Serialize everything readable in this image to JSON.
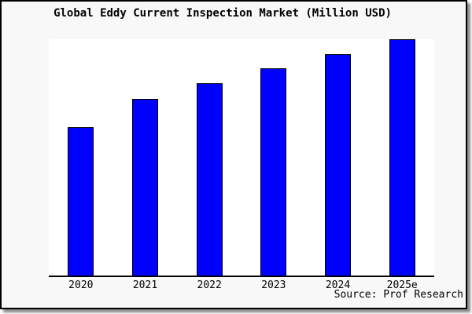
{
  "title": "Global Eddy Current Inspection Market (Million USD)",
  "source": "Source: Prof Research",
  "colors": {
    "bar_fill": "#0000ff",
    "bar_border": "#000000",
    "plot_background": "#ffffff",
    "figure_background": "#f8f8f8",
    "frame_border": "#000000",
    "text": "#000000"
  },
  "chart_data": {
    "type": "bar",
    "title": "Global Eddy Current Inspection Market (Million USD)",
    "categories": [
      "2020",
      "2021",
      "2022",
      "2023",
      "2024",
      "2025e"
    ],
    "values": [
      62.9,
      74.8,
      81.4,
      87.8,
      93.8,
      100
    ],
    "value_note": "no y-axis ticks/labels shown; values estimated from bar heights relative to tallest bar (2025e) = 100",
    "xlabel": "",
    "ylabel": "",
    "ylim": [
      0,
      100
    ],
    "grid": false,
    "legend": false,
    "annotation": "Source: Prof Research"
  }
}
